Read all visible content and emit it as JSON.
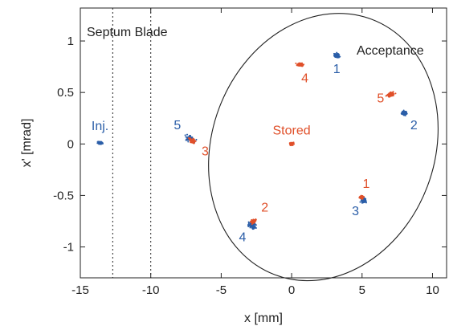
{
  "chart_data": {
    "type": "scatter",
    "title": "",
    "xlabel": "x [mm]",
    "ylabel": "x' [mrad]",
    "xlim": [
      -15,
      11
    ],
    "ylim": [
      -1.3,
      1.32
    ],
    "x_ticks": [
      "-15",
      "-10",
      "-5",
      "0",
      "5",
      "10"
    ],
    "x_tick_values": [
      -15,
      -10,
      -5,
      0,
      5,
      10
    ],
    "y_ticks": [
      "1",
      "0.5",
      "0",
      "-0.5",
      "-1"
    ],
    "y_tick_values": [
      1,
      0.5,
      0,
      -0.5,
      -1
    ],
    "grid": false,
    "colors": {
      "injected": "#2b5ea8",
      "stored": "#e0502a",
      "frame": "#222222",
      "ellipse": "#222222"
    },
    "septum_blade": {
      "label": "Septum Blade",
      "x_lines": [
        -12.7,
        -10
      ]
    },
    "acceptance": {
      "label": "Acceptance",
      "center": [
        2.25,
        -0.03
      ],
      "semi_axes": [
        9.7,
        1.08
      ],
      "rotation": 0.045
    },
    "injected_clusters": [
      {
        "label": "Inj.",
        "x": -13.6,
        "y": 0.01,
        "spread": [
          0.35,
          0.02
        ]
      },
      {
        "label": "1",
        "x": 3.2,
        "y": 0.86,
        "spread": [
          0.2,
          0.05
        ]
      },
      {
        "label": "2",
        "x": 8.0,
        "y": 0.3,
        "spread": [
          0.35,
          0.04
        ]
      },
      {
        "label": "3",
        "x": 5.1,
        "y": -0.55,
        "spread": [
          0.35,
          0.04
        ]
      },
      {
        "label": "4",
        "x": -2.8,
        "y": -0.79,
        "spread": [
          0.55,
          0.06
        ]
      },
      {
        "label": "5",
        "x": -7.2,
        "y": 0.05,
        "spread": [
          0.4,
          0.09
        ]
      }
    ],
    "stored_clusters": [
      {
        "label": "Stored",
        "x": 0,
        "y": 0.0,
        "spread": [
          0.12,
          0.008
        ]
      },
      {
        "label": "1",
        "x": 4.95,
        "y": -0.52,
        "spread": [
          0.25,
          0.008
        ]
      },
      {
        "label": "2",
        "x": -2.7,
        "y": -0.75,
        "spread": [
          0.35,
          0.03
        ]
      },
      {
        "label": "3",
        "x": -7.05,
        "y": 0.03,
        "spread": [
          0.3,
          0.06
        ]
      },
      {
        "label": "4",
        "x": 0.6,
        "y": 0.77,
        "spread": [
          0.45,
          0.01
        ]
      },
      {
        "label": "5",
        "x": 7.0,
        "y": 0.48,
        "spread": [
          0.15,
          0.07
        ]
      }
    ]
  }
}
